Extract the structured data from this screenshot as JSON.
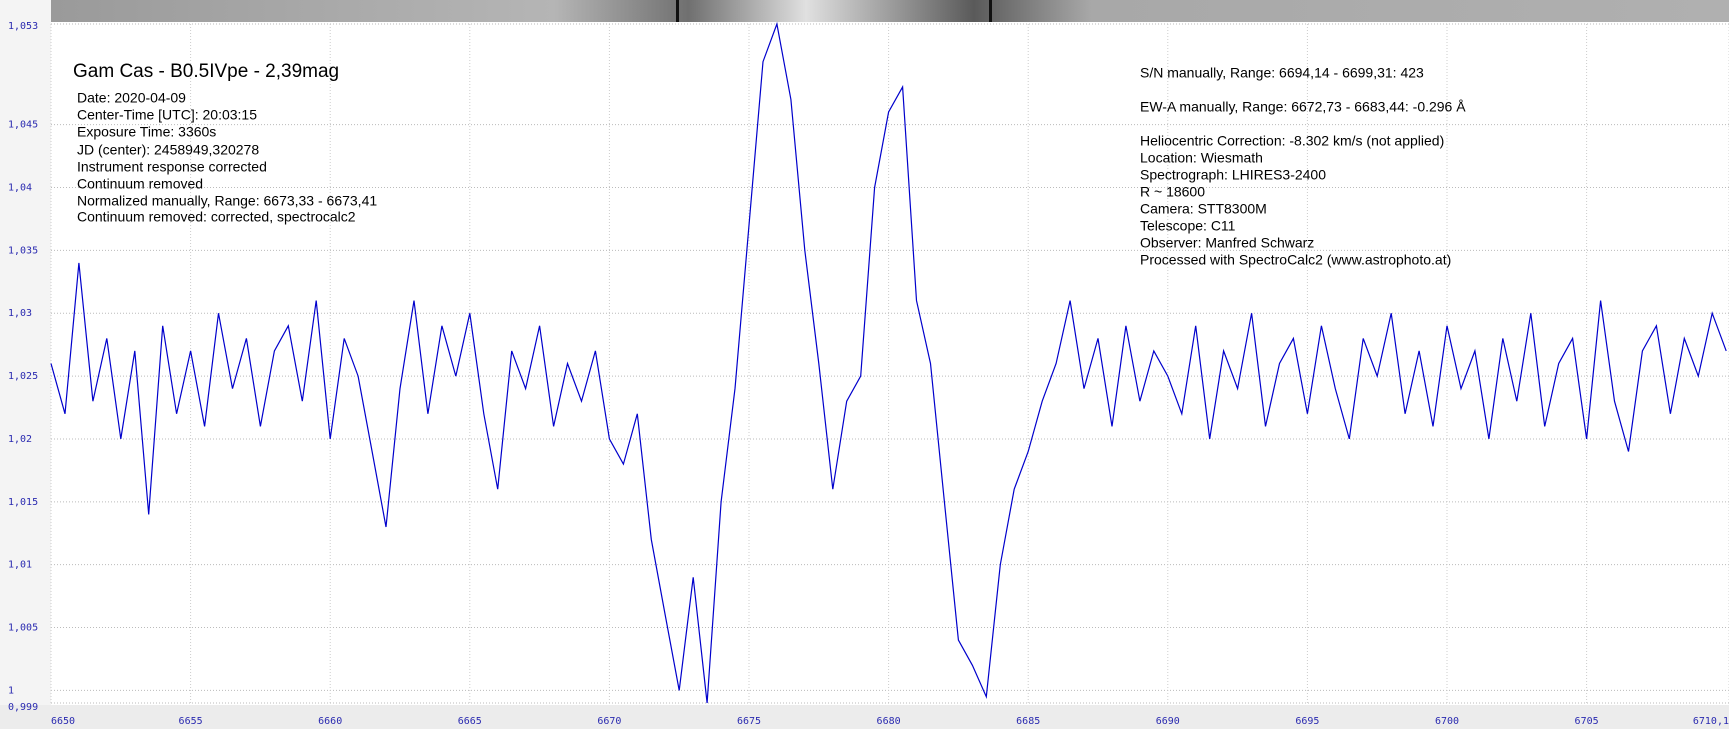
{
  "chart_data": {
    "type": "line",
    "title": "Gam Cas - B0.5IVpe - 2,39mag",
    "annotations_left": [
      "Date: 2020-04-09",
      "Center-Time [UTC]: 20:03:15",
      "Exposure Time: 3360s",
      "JD (center): 2458949,320278",
      "Instrument response corrected",
      "Continuum removed",
      "Normalized manually, Range: 6673,33 - 6673,41",
      "Continuum removed: corrected, spectrocalc2"
    ],
    "annotations_right": [
      "S/N manually, Range: 6694,14 - 6699,31: 423",
      "EW-A manually, Range: 6672,73 - 6683,44: -0.296 Å",
      "Heliocentric Correction: -8.302 km/s (not applied)",
      "Location: Wiesmath",
      "Spectrograph: LHIRES3-2400",
      "R ~ 18600",
      "Camera: STT8300M",
      "Telescope: C11",
      "Observer: Manfred Schwarz",
      "Processed with SpectroCalc2 (www.astrophoto.at)"
    ],
    "color": "#0000cc",
    "grid": true,
    "x": [
      6650,
      6650.5,
      6651,
      6651.5,
      6652,
      6652.5,
      6653,
      6653.5,
      6654,
      6654.5,
      6655,
      6655.5,
      6656,
      6656.5,
      6657,
      6657.5,
      6658,
      6658.5,
      6659,
      6659.5,
      6660,
      6660.5,
      6661,
      6661.5,
      6662,
      6662.5,
      6663,
      6663.5,
      6664,
      6664.5,
      6665,
      6665.5,
      6666,
      6666.5,
      6667,
      6667.5,
      6668,
      6668.5,
      6669,
      6669.5,
      6670,
      6670.5,
      6671,
      6671.5,
      6672,
      6672.5,
      6673,
      6673.5,
      6674,
      6674.5,
      6675,
      6675.5,
      6676,
      6676.5,
      6677,
      6677.5,
      6678,
      6678.5,
      6679,
      6679.5,
      6680,
      6680.5,
      6681,
      6681.5,
      6682,
      6682.5,
      6683,
      6683.5,
      6684,
      6684.5,
      6685,
      6685.5,
      6686,
      6686.5,
      6687,
      6687.5,
      6688,
      6688.5,
      6689,
      6689.5,
      6690,
      6690.5,
      6691,
      6691.5,
      6692,
      6692.5,
      6693,
      6693.5,
      6694,
      6694.5,
      6695,
      6695.5,
      6696,
      6696.5,
      6697,
      6697.5,
      6698,
      6698.5,
      6699,
      6699.5,
      6700,
      6700.5,
      6701,
      6701.5,
      6702,
      6702.5,
      6703,
      6703.5,
      6704,
      6704.5,
      6705,
      6705.5,
      6706,
      6706.5,
      6707,
      6707.5,
      6708,
      6708.5,
      6709,
      6709.5,
      6710
    ],
    "values": [
      1.026,
      1.022,
      1.034,
      1.023,
      1.028,
      1.02,
      1.027,
      1.014,
      1.029,
      1.022,
      1.027,
      1.021,
      1.03,
      1.024,
      1.028,
      1.021,
      1.027,
      1.029,
      1.023,
      1.031,
      1.02,
      1.028,
      1.025,
      1.019,
      1.013,
      1.024,
      1.031,
      1.022,
      1.029,
      1.025,
      1.03,
      1.022,
      1.016,
      1.027,
      1.024,
      1.029,
      1.021,
      1.026,
      1.023,
      1.027,
      1.02,
      1.018,
      1.022,
      1.012,
      1.006,
      1.0,
      1.009,
      0.999,
      1.015,
      1.024,
      1.037,
      1.05,
      1.053,
      1.047,
      1.035,
      1.026,
      1.016,
      1.023,
      1.025,
      1.04,
      1.046,
      1.048,
      1.031,
      1.026,
      1.015,
      1.004,
      1.002,
      0.9995,
      1.01,
      1.016,
      1.019,
      1.023,
      1.026,
      1.031,
      1.024,
      1.028,
      1.021,
      1.029,
      1.023,
      1.027,
      1.025,
      1.022,
      1.029,
      1.02,
      1.027,
      1.024,
      1.03,
      1.021,
      1.026,
      1.028,
      1.022,
      1.029,
      1.024,
      1.02,
      1.028,
      1.025,
      1.03,
      1.022,
      1.027,
      1.021,
      1.029,
      1.024,
      1.027,
      1.02,
      1.028,
      1.023,
      1.03,
      1.021,
      1.026,
      1.028,
      1.02,
      1.031,
      1.023,
      1.019,
      1.027,
      1.029,
      1.022,
      1.028,
      1.025,
      1.03,
      1.027
    ],
    "xlim": [
      6650,
      6710.1
    ],
    "xticks": [
      6650,
      6655,
      6660,
      6665,
      6670,
      6675,
      6680,
      6685,
      6690,
      6695,
      6700,
      6705,
      {
        "value": 6710.1,
        "label": "6710,1"
      }
    ],
    "ylim": [
      0.999,
      1.053
    ],
    "yticks": [
      {
        "value": 0.999,
        "label": "0,999"
      },
      1,
      {
        "value": 1.005,
        "label": "1,005"
      },
      {
        "value": 1.01,
        "label": "1,01"
      },
      {
        "value": 1.015,
        "label": "1,015"
      },
      {
        "value": 1.02,
        "label": "1,02"
      },
      {
        "value": 1.025,
        "label": "1,025"
      },
      {
        "value": 1.03,
        "label": "1,03"
      },
      {
        "value": 1.035,
        "label": "1,035"
      },
      {
        "value": 1.04,
        "label": "1,04"
      },
      {
        "value": 1.045,
        "label": "1,045"
      },
      {
        "value": 1.053,
        "label": "1,053"
      }
    ]
  }
}
